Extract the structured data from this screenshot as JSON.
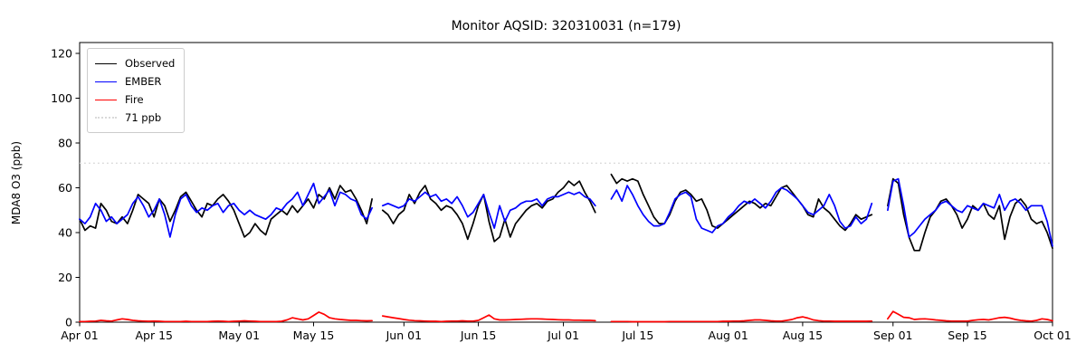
{
  "chart_data": {
    "type": "line",
    "title": "Monitor AQSID: 320310031 (n=179)",
    "xlabel": "",
    "ylabel": "MDA8 O3 (ppb)",
    "ylim": [
      0,
      125
    ],
    "yticks": [
      0,
      20,
      40,
      60,
      80,
      100,
      120
    ],
    "x_unit": "day index from Apr 01",
    "n_days": 184,
    "xtick_days": [
      0,
      14,
      30,
      44,
      61,
      75,
      91,
      105,
      122,
      136,
      153,
      167,
      183
    ],
    "xtick_labels": [
      "Apr 01",
      "Apr 15",
      "May 01",
      "May 15",
      "Jun 01",
      "Jun 15",
      "Jul 01",
      "Jul 15",
      "Aug 01",
      "Aug 15",
      "Sep 01",
      "Sep 15",
      "Oct 01"
    ],
    "grid": false,
    "legend_position": "upper left",
    "threshold": {
      "label": "71 ppb",
      "value": 71,
      "color": "#d9d9d9",
      "style": "dotted"
    },
    "missing_days_note": "gaps (null) around May 27, Jul 08-09, Aug 29-30; n=179 of 184 days",
    "series": [
      {
        "name": "Observed",
        "color": "#000000",
        "values": [
          46,
          41,
          43,
          42,
          53,
          50,
          45,
          44,
          47,
          44,
          50,
          57,
          55,
          53,
          47,
          55,
          52,
          45,
          50,
          56,
          58,
          54,
          50,
          47,
          53,
          52,
          55,
          57,
          54,
          50,
          44,
          38,
          40,
          44,
          41,
          39,
          46,
          48,
          50,
          48,
          52,
          49,
          52,
          55,
          51,
          57,
          55,
          60,
          55,
          61,
          58,
          59,
          55,
          50,
          44,
          55,
          null,
          50,
          48,
          44,
          48,
          50,
          57,
          53,
          58,
          61,
          55,
          53,
          50,
          52,
          51,
          48,
          44,
          37,
          44,
          52,
          57,
          45,
          36,
          38,
          46,
          38,
          44,
          47,
          50,
          52,
          53,
          51,
          54,
          55,
          58,
          60,
          63,
          61,
          63,
          58,
          54,
          49,
          null,
          null,
          66,
          62,
          64,
          63,
          64,
          63,
          57,
          52,
          47,
          44,
          44,
          48,
          54,
          58,
          59,
          57,
          54,
          55,
          50,
          43,
          42,
          44,
          46,
          48,
          50,
          52,
          54,
          53,
          51,
          53,
          52,
          56,
          60,
          61,
          58,
          55,
          52,
          48,
          47,
          55,
          51,
          49,
          46,
          43,
          41,
          44,
          48,
          46,
          47,
          48,
          null,
          null,
          52,
          64,
          62,
          48,
          38,
          32,
          32,
          40,
          47,
          50,
          54,
          55,
          52,
          48,
          42,
          46,
          52,
          50,
          53,
          48,
          46,
          52,
          37,
          47,
          53,
          55,
          52,
          46,
          44,
          45,
          40,
          33
        ]
      },
      {
        "name": "EMBER",
        "color": "#0000ff",
        "values": [
          46,
          44,
          47,
          53,
          50,
          45,
          47,
          44,
          46,
          48,
          53,
          56,
          52,
          47,
          50,
          55,
          48,
          38,
          48,
          55,
          57,
          52,
          49,
          51,
          50,
          52,
          53,
          49,
          52,
          53,
          50,
          48,
          50,
          48,
          47,
          46,
          48,
          51,
          50,
          53,
          55,
          58,
          52,
          57,
          62,
          53,
          56,
          59,
          52,
          58,
          57,
          55,
          54,
          48,
          46,
          51,
          null,
          52,
          53,
          52,
          51,
          52,
          55,
          54,
          56,
          58,
          56,
          57,
          54,
          55,
          53,
          56,
          52,
          47,
          49,
          53,
          57,
          49,
          42,
          52,
          45,
          50,
          51,
          53,
          54,
          54,
          55,
          52,
          55,
          56,
          56,
          57,
          58,
          57,
          58,
          56,
          55,
          52,
          null,
          null,
          55,
          59,
          54,
          61,
          57,
          52,
          48,
          45,
          43,
          43,
          44,
          49,
          55,
          57,
          58,
          56,
          46,
          42,
          41,
          40,
          43,
          44,
          47,
          49,
          52,
          54,
          53,
          55,
          53,
          51,
          54,
          58,
          60,
          59,
          57,
          55,
          52,
          49,
          48,
          50,
          52,
          57,
          52,
          45,
          42,
          43,
          47,
          44,
          46,
          53,
          null,
          null,
          50,
          63,
          64,
          52,
          38,
          40,
          43,
          46,
          48,
          50,
          53,
          54,
          52,
          50,
          49,
          52,
          51,
          50,
          53,
          52,
          51,
          57,
          50,
          54,
          55,
          53,
          50,
          52,
          52,
          52,
          45,
          34
        ]
      },
      {
        "name": "Fire",
        "color": "#ff0000",
        "values": [
          0.3,
          0.3,
          0.4,
          0.5,
          0.8,
          0.6,
          0.5,
          1.0,
          1.5,
          1.2,
          0.8,
          0.6,
          0.5,
          0.4,
          0.5,
          0.4,
          0.3,
          0.3,
          0.3,
          0.3,
          0.4,
          0.3,
          0.3,
          0.3,
          0.3,
          0.4,
          0.5,
          0.4,
          0.3,
          0.4,
          0.5,
          0.6,
          0.5,
          0.4,
          0.3,
          0.3,
          0.3,
          0.3,
          0.4,
          1.0,
          2.0,
          1.5,
          1.0,
          1.5,
          3.0,
          4.5,
          3.5,
          2.0,
          1.5,
          1.2,
          1.0,
          0.8,
          0.8,
          0.7,
          0.6,
          0.7,
          null,
          2.8,
          2.4,
          2.0,
          1.6,
          1.2,
          0.9,
          0.7,
          0.6,
          0.5,
          0.4,
          0.4,
          0.3,
          0.4,
          0.5,
          0.5,
          0.6,
          0.5,
          0.5,
          0.8,
          2.0,
          3.2,
          1.5,
          1.0,
          1.0,
          1.1,
          1.2,
          1.3,
          1.4,
          1.5,
          1.5,
          1.4,
          1.3,
          1.2,
          1.1,
          1.0,
          1.0,
          0.9,
          0.9,
          0.8,
          0.8,
          0.7,
          null,
          null,
          0.3,
          0.3,
          0.3,
          0.3,
          0.2,
          0.2,
          0.2,
          0.2,
          0.2,
          0.2,
          0.2,
          0.3,
          0.3,
          0.3,
          0.3,
          0.3,
          0.3,
          0.3,
          0.3,
          0.3,
          0.3,
          0.4,
          0.4,
          0.5,
          0.5,
          0.6,
          0.8,
          1.0,
          1.0,
          0.8,
          0.6,
          0.5,
          0.5,
          0.8,
          1.2,
          2.0,
          2.4,
          1.8,
          1.0,
          0.7,
          0.5,
          0.5,
          0.4,
          0.4,
          0.4,
          0.4,
          0.4,
          0.4,
          0.4,
          0.5,
          null,
          null,
          1.5,
          4.8,
          3.5,
          2.2,
          2.0,
          1.2,
          1.4,
          1.5,
          1.3,
          1.0,
          0.8,
          0.6,
          0.5,
          0.5,
          0.5,
          0.5,
          0.8,
          1.1,
          1.2,
          1.0,
          1.5,
          2.0,
          2.2,
          1.8,
          1.2,
          0.8,
          0.6,
          0.5,
          0.8,
          1.5,
          1.2,
          0.6
        ]
      }
    ]
  }
}
